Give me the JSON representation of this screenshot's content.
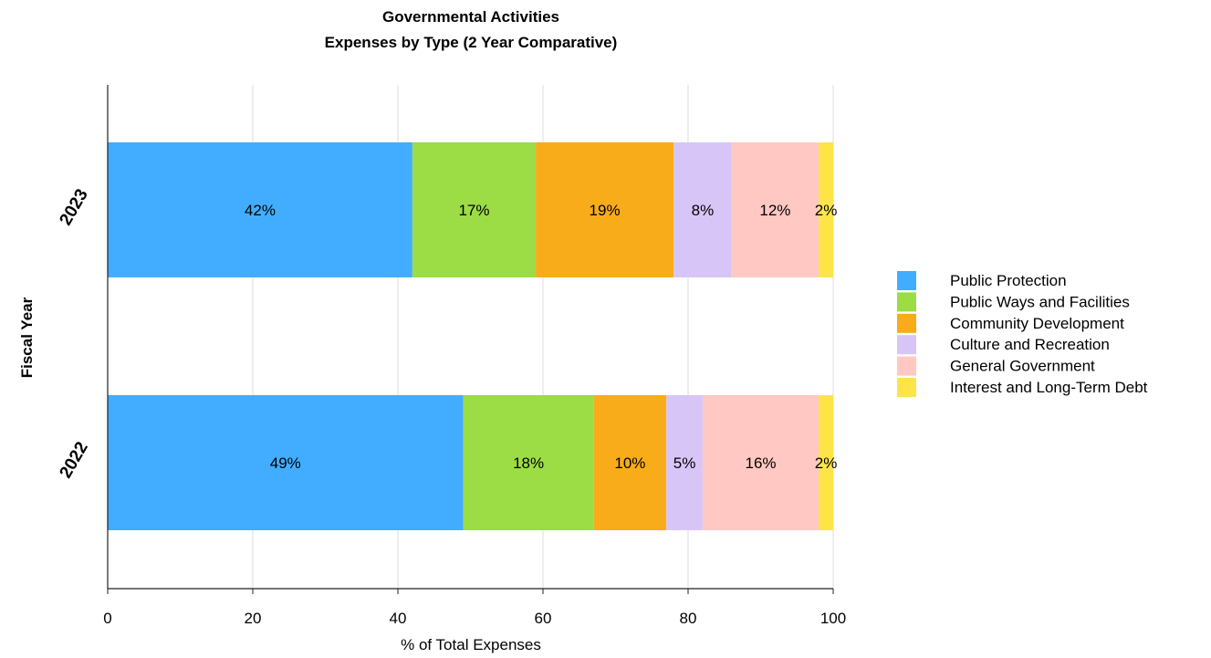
{
  "chart_data": {
    "type": "bar",
    "orientation": "horizontal",
    "stacked": true,
    "title_line1": "Governmental Activities",
    "title_line2": "Expenses by Type (2 Year Comparative)",
    "xlabel": "% of Total Expenses",
    "ylabel": "Fiscal Year",
    "xlim": [
      0,
      100
    ],
    "xticks": [
      "0",
      "20",
      "40",
      "60",
      "80",
      "100"
    ],
    "grid": true,
    "legend_position": "right",
    "categories": [
      "2023",
      "2022"
    ],
    "series": [
      {
        "name": "Public Protection",
        "color": "#42adff",
        "values": [
          42,
          49
        ],
        "labels": [
          "42%",
          "49%"
        ]
      },
      {
        "name": "Public Ways and Facilities",
        "color": "#9cdc45",
        "values": [
          17,
          18
        ],
        "labels": [
          "17%",
          "18%"
        ]
      },
      {
        "name": "Community Development",
        "color": "#f9ac1a",
        "values": [
          19,
          10
        ],
        "labels": [
          "19%",
          "10%"
        ]
      },
      {
        "name": "Culture and Recreation",
        "color": "#d7c5f8",
        "values": [
          8,
          5
        ],
        "labels": [
          "8%",
          "5%"
        ]
      },
      {
        "name": "General Government",
        "color": "#ffc8c2",
        "values": [
          12,
          16
        ],
        "labels": [
          "12%",
          "16%"
        ]
      },
      {
        "name": "Interest and Long-Term Debt",
        "color": "#fde449",
        "values": [
          2,
          2
        ],
        "labels": [
          "2%",
          "2%"
        ]
      }
    ]
  }
}
